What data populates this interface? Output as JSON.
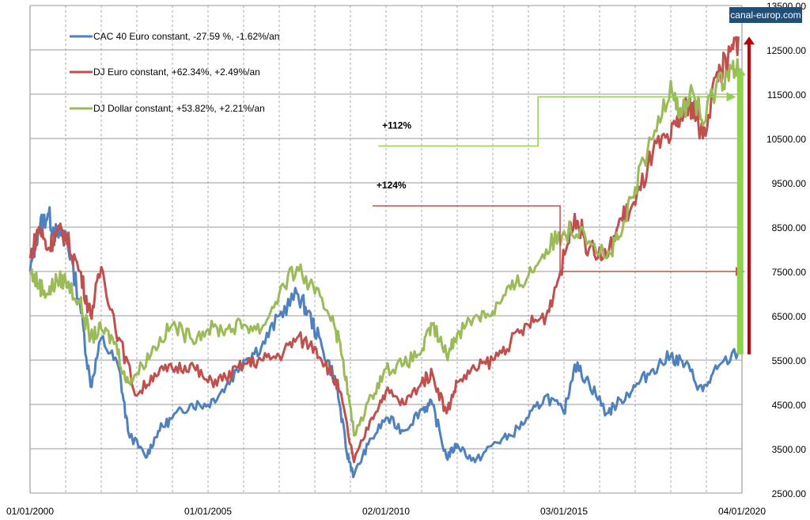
{
  "chart_data": {
    "type": "line",
    "title": "",
    "watermark": "canal-europ.com",
    "xlabel": "",
    "ylabel": "",
    "xlim": [
      2000.0,
      2020.0
    ],
    "ylim": [
      2500,
      13500
    ],
    "grid": true,
    "legend_position": "top-left",
    "x_ticks": [
      {
        "x": 2000.0,
        "label": "01/01/2000"
      },
      {
        "x": 2005.0,
        "label": "01/01/2005"
      },
      {
        "x": 2010.0,
        "label": "02/01/2010"
      },
      {
        "x": 2015.0,
        "label": "03/01/2015"
      },
      {
        "x": 2020.0,
        "label": "04/01/2020"
      }
    ],
    "y_ticks": [
      "2500.00",
      "3500.00",
      "4500.00",
      "5500.00",
      "6500.00",
      "7500.00",
      "8500.00",
      "9500.00",
      "10500.00",
      "11500.00",
      "12500.00",
      "13500.00"
    ],
    "series": [
      {
        "name": "CAC 40 Euro constant, -27.59 %,  -1.62%/an",
        "color": "#4f81bd",
        "x": [
          2000,
          2000.25,
          2000.5,
          2000.75,
          2001,
          2001.4,
          2001.7,
          2002,
          2002.5,
          2002.75,
          2003.25,
          2003.6,
          2004,
          2004.5,
          2005,
          2005.5,
          2006,
          2006.5,
          2007,
          2007.5,
          2007.8,
          2008.2,
          2008.6,
          2008.9,
          2009.1,
          2009.5,
          2010,
          2010.5,
          2011,
          2011.3,
          2011.7,
          2012,
          2012.5,
          2013,
          2013.5,
          2014,
          2014.5,
          2015,
          2015.3,
          2015.7,
          2016.2,
          2016.6,
          2017,
          2017.5,
          2018,
          2018.4,
          2018.9,
          2019.3,
          2019.9
        ],
        "y": [
          7500,
          8500,
          8800,
          8300,
          8400,
          6800,
          4900,
          6000,
          5300,
          3900,
          3300,
          3900,
          4200,
          4500,
          4500,
          4900,
          5500,
          5800,
          6500,
          7000,
          6600,
          5800,
          5000,
          3400,
          2900,
          3600,
          4200,
          3900,
          4400,
          4500,
          3300,
          3600,
          3200,
          3600,
          3800,
          4200,
          4700,
          4300,
          5400,
          5000,
          4300,
          4600,
          4900,
          5300,
          5600,
          5400,
          4800,
          5300,
          5700
        ]
      },
      {
        "name": "DJ Euro constant, +62.34%, +2.49%/an",
        "color": "#c0504d",
        "x": [
          2000,
          2000.25,
          2000.5,
          2000.75,
          2001,
          2001.4,
          2001.7,
          2002,
          2002.5,
          2003,
          2003.5,
          2004,
          2004.5,
          2005,
          2005.5,
          2006,
          2006.5,
          2007,
          2007.5,
          2008,
          2008.4,
          2008.7,
          2009.1,
          2009.6,
          2010,
          2010.5,
          2011,
          2011.3,
          2011.7,
          2012,
          2012.5,
          2013,
          2013.5,
          2014,
          2014.5,
          2014.9,
          2015.3,
          2015.7,
          2016.2,
          2016.6,
          2017,
          2017.5,
          2018,
          2018.3,
          2018.6,
          2018.9,
          2019.3,
          2019.6,
          2019.9
        ],
        "y": [
          7800,
          8500,
          8000,
          8400,
          8300,
          7500,
          6500,
          7600,
          6000,
          4700,
          5200,
          5300,
          5400,
          5000,
          5100,
          5400,
          5500,
          5600,
          6000,
          5800,
          5300,
          4800,
          3200,
          4200,
          4800,
          4500,
          5000,
          5200,
          4300,
          5000,
          5300,
          5500,
          5900,
          6300,
          6500,
          7500,
          8800,
          8000,
          7800,
          8700,
          9000,
          10200,
          10500,
          11000,
          11300,
          10500,
          12000,
          12200,
          12800
        ]
      },
      {
        "name": "DJ Dollar constant, +53.82%, +2.21%/an",
        "color": "#9bbb59",
        "x": [
          2000,
          2000.25,
          2000.5,
          2000.75,
          2001,
          2001.4,
          2001.7,
          2002,
          2002.4,
          2002.7,
          2003,
          2003.5,
          2004,
          2004.5,
          2005,
          2005.5,
          2006,
          2006.5,
          2007,
          2007.5,
          2008,
          2008.5,
          2008.8,
          2009.1,
          2009.6,
          2010,
          2010.5,
          2011,
          2011.3,
          2011.7,
          2012,
          2012.5,
          2013,
          2013.5,
          2014,
          2014.5,
          2015,
          2015.5,
          2016.2,
          2016.6,
          2017,
          2017.5,
          2018,
          2018.3,
          2018.6,
          2018.9,
          2019.3,
          2019.6,
          2019.9
        ],
        "y": [
          7500,
          7200,
          7000,
          7300,
          7300,
          6800,
          6000,
          6200,
          5900,
          5000,
          5200,
          5800,
          6300,
          6000,
          6200,
          6200,
          6300,
          6200,
          7000,
          7600,
          7000,
          6500,
          5500,
          3800,
          4700,
          5300,
          5400,
          5700,
          6300,
          5600,
          6100,
          6500,
          6600,
          7100,
          7400,
          8000,
          8400,
          8500,
          7800,
          8300,
          9400,
          10500,
          11800,
          11000,
          11600,
          10800,
          11800,
          12000,
          12000
        ]
      }
    ],
    "annotations": [
      {
        "label": "+112%",
        "color": "#92d050",
        "path_x": [
          2009.78,
          2014.27,
          2014.27,
          2019.8
        ],
        "path_y": [
          10330,
          10330,
          11440,
          11440
        ]
      },
      {
        "label": "+124%",
        "color": "#c0504d",
        "path_x": [
          2009.62,
          2014.89,
          2014.89,
          2020.05
        ],
        "path_y": [
          8980,
          8980,
          7500,
          7500
        ]
      }
    ],
    "vertical_arrows": [
      {
        "name": "dj-dollar-gain-arrow",
        "color": "#92d050",
        "x": 2019.95,
        "from": 5630,
        "to": 12100
      },
      {
        "name": "dj-euro-gain-arrow",
        "color": "#c00000",
        "x": 2020.2,
        "from": 5630,
        "to": 12800
      }
    ]
  }
}
